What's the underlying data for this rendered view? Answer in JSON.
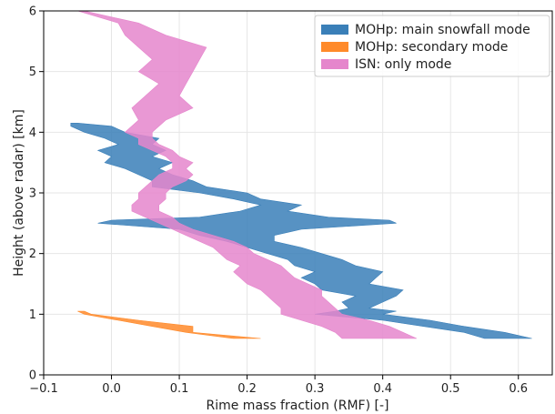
{
  "chart_data": {
    "type": "area",
    "xlabel": "Rime mass fraction (RMF) [-]",
    "ylabel": "Height (above radar) [km]",
    "xlim": [
      -0.1,
      0.65
    ],
    "ylim": [
      0,
      6
    ],
    "xticks": [
      -0.1,
      0.0,
      0.1,
      0.2,
      0.3,
      0.4,
      0.5,
      0.6
    ],
    "xtick_labels": [
      "−0.1",
      "0.0",
      "0.1",
      "0.2",
      "0.3",
      "0.4",
      "0.5",
      "0.6"
    ],
    "yticks": [
      0,
      1,
      2,
      3,
      4,
      5,
      6
    ],
    "ytick_labels": [
      "0",
      "1",
      "2",
      "3",
      "4",
      "5",
      "6"
    ],
    "grid": true,
    "legend_position": "top-right",
    "series": [
      {
        "name": "MOHp: main snowfall mode",
        "color": "#3a7fb8",
        "heights": [
          0.6,
          0.7,
          0.8,
          0.9,
          1.0,
          1.05,
          1.1,
          1.2,
          1.3,
          1.4,
          1.5,
          1.6,
          1.7,
          1.8,
          1.9,
          2.0,
          2.1,
          2.2,
          2.3,
          2.4,
          2.5,
          2.55,
          2.6,
          2.7,
          2.8,
          2.9,
          3.0,
          3.1,
          3.2,
          3.3,
          3.4,
          3.5,
          3.6,
          3.7,
          3.8,
          3.9,
          4.0,
          4.1,
          4.15
        ],
        "low": [
          0.55,
          0.52,
          0.46,
          0.4,
          0.3,
          0.33,
          0.35,
          0.34,
          0.36,
          0.31,
          0.3,
          0.28,
          0.3,
          0.27,
          0.26,
          0.23,
          0.2,
          0.17,
          0.13,
          0.1,
          -0.02,
          0.0,
          0.13,
          0.19,
          0.22,
          0.18,
          0.13,
          0.06,
          0.06,
          0.04,
          0.02,
          -0.01,
          0.0,
          -0.02,
          0.01,
          -0.01,
          -0.04,
          -0.06,
          -0.06
        ],
        "high": [
          0.62,
          0.58,
          0.52,
          0.47,
          0.4,
          0.42,
          0.38,
          0.4,
          0.42,
          0.43,
          0.38,
          0.39,
          0.4,
          0.36,
          0.34,
          0.31,
          0.28,
          0.24,
          0.24,
          0.28,
          0.42,
          0.41,
          0.32,
          0.26,
          0.28,
          0.22,
          0.2,
          0.14,
          0.12,
          0.09,
          0.07,
          0.09,
          0.06,
          0.08,
          0.06,
          0.07,
          0.02,
          0.0,
          -0.05
        ]
      },
      {
        "name": "MOHp: secondary mode",
        "color": "#ff8a2a",
        "heights": [
          0.6,
          0.7,
          0.8,
          0.9,
          1.0,
          1.05
        ],
        "low": [
          0.18,
          0.11,
          0.06,
          0.01,
          -0.04,
          -0.05
        ],
        "high": [
          0.22,
          0.12,
          0.12,
          0.04,
          -0.03,
          -0.04
        ]
      },
      {
        "name": "ISN: only mode",
        "color": "#e586cc",
        "heights": [
          0.6,
          0.7,
          0.8,
          0.9,
          1.0,
          1.1,
          1.2,
          1.3,
          1.4,
          1.5,
          1.6,
          1.7,
          1.8,
          1.9,
          2.0,
          2.1,
          2.2,
          2.3,
          2.4,
          2.5,
          2.6,
          2.7,
          2.8,
          2.9,
          3.0,
          3.1,
          3.2,
          3.3,
          3.4,
          3.5,
          3.6,
          3.7,
          3.8,
          3.9,
          4.0,
          4.2,
          4.4,
          4.6,
          4.8,
          5.0,
          5.2,
          5.4,
          5.6,
          5.8,
          6.0
        ],
        "low": [
          0.34,
          0.33,
          0.31,
          0.28,
          0.25,
          0.25,
          0.24,
          0.23,
          0.22,
          0.2,
          0.19,
          0.18,
          0.19,
          0.17,
          0.16,
          0.15,
          0.13,
          0.11,
          0.09,
          0.07,
          0.05,
          0.03,
          0.03,
          0.04,
          0.04,
          0.05,
          0.06,
          0.07,
          0.09,
          0.09,
          0.08,
          0.06,
          0.04,
          0.04,
          0.02,
          0.04,
          0.03,
          0.05,
          0.07,
          0.04,
          0.06,
          0.04,
          0.02,
          0.01,
          -0.05
        ],
        "high": [
          0.45,
          0.43,
          0.41,
          0.38,
          0.34,
          0.33,
          0.32,
          0.31,
          0.31,
          0.29,
          0.27,
          0.26,
          0.25,
          0.23,
          0.21,
          0.2,
          0.18,
          0.15,
          0.12,
          0.1,
          0.09,
          0.07,
          0.07,
          0.08,
          0.08,
          0.09,
          0.11,
          0.12,
          0.11,
          0.12,
          0.1,
          0.09,
          0.07,
          0.06,
          0.06,
          0.08,
          0.12,
          0.1,
          0.11,
          0.12,
          0.13,
          0.14,
          0.08,
          0.04,
          -0.04
        ]
      }
    ]
  }
}
